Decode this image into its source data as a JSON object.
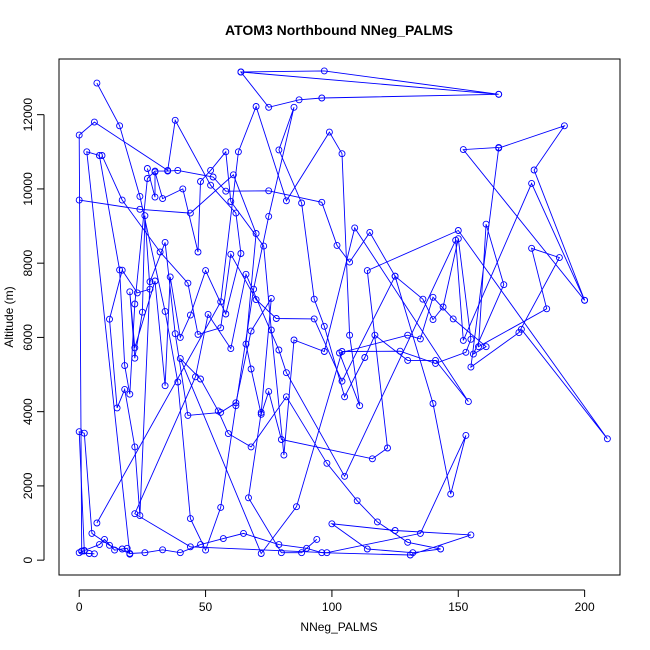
{
  "chart_data": {
    "type": "line",
    "title": "ATOM3 Northbound NNeg_PALMS",
    "xlabel": "NNeg_PALMS",
    "ylabel": "Altitude (m)",
    "xlim": [
      -8,
      214
    ],
    "ylim": [
      -400,
      13500
    ],
    "x_ticks": [
      0,
      50,
      100,
      150,
      200
    ],
    "y_ticks": [
      0,
      2000,
      4000,
      6000,
      8000,
      10000,
      12000
    ],
    "grid": false,
    "marker": "open-circle",
    "colors": {
      "series": "#0000ff",
      "axis": "#000000"
    },
    "series": [
      {
        "points": [
          [
            1,
            240
          ],
          [
            2,
            260
          ],
          [
            8,
            420
          ],
          [
            10,
            560
          ],
          [
            14,
            270
          ],
          [
            17,
            300
          ],
          [
            19,
            320
          ],
          [
            20,
            160
          ],
          [
            3,
            11000
          ],
          [
            8,
            10900
          ],
          [
            16,
            7820
          ],
          [
            18,
            5240
          ],
          [
            20,
            4470
          ],
          [
            22,
            6900
          ],
          [
            27,
            10280
          ],
          [
            30,
            10480
          ],
          [
            35,
            10480
          ],
          [
            39,
            10500
          ],
          [
            53,
            10320
          ],
          [
            58,
            9940
          ],
          [
            75,
            9950
          ],
          [
            96,
            9640
          ],
          [
            102,
            8480
          ],
          [
            107,
            8030
          ],
          [
            115,
            8830
          ],
          [
            125,
            7650
          ],
          [
            136,
            7030
          ],
          [
            140,
            6480
          ],
          [
            144,
            6820
          ],
          [
            150,
            8660
          ],
          [
            155,
            5950
          ],
          [
            153,
            5600
          ],
          [
            141,
            5300
          ],
          [
            127,
            5630
          ],
          [
            104,
            5620
          ],
          [
            86,
            1440
          ],
          [
            72,
            180
          ],
          [
            40,
            5430
          ],
          [
            48,
            4880
          ],
          [
            55,
            4020
          ],
          [
            59,
            3410
          ],
          [
            68,
            3050
          ],
          [
            82,
            4400
          ],
          [
            98,
            2610
          ],
          [
            110,
            1600
          ],
          [
            118,
            1030
          ],
          [
            130,
            480
          ],
          [
            143,
            300
          ],
          [
            132,
            200
          ],
          [
            114,
            300
          ],
          [
            100,
            980
          ],
          [
            125,
            800
          ],
          [
            155,
            680
          ],
          [
            131,
            140
          ],
          [
            96,
            200
          ],
          [
            90,
            320
          ],
          [
            79,
            420
          ],
          [
            65,
            720
          ],
          [
            57,
            580
          ],
          [
            48,
            420
          ],
          [
            40,
            200
          ],
          [
            33,
            280
          ],
          [
            26,
            200
          ],
          [
            20,
            180
          ],
          [
            12,
            400
          ],
          [
            5,
            720
          ],
          [
            2,
            3420
          ],
          [
            0,
            3460
          ],
          [
            2,
            250
          ],
          [
            0,
            200
          ],
          [
            4,
            180
          ],
          [
            6,
            170
          ]
        ]
      },
      {
        "points": [
          [
            1,
            240
          ],
          [
            0,
            11450
          ],
          [
            6,
            11800
          ],
          [
            35,
            10500
          ],
          [
            38,
            11850
          ],
          [
            52,
            10100
          ],
          [
            62,
            9350
          ],
          [
            64,
            8260
          ],
          [
            58,
            6630
          ],
          [
            50,
            7800
          ],
          [
            44,
            6600
          ],
          [
            40,
            6000
          ],
          [
            36,
            7630
          ],
          [
            34,
            4700
          ],
          [
            30,
            7520
          ],
          [
            22,
            5720
          ],
          [
            20,
            7230
          ],
          [
            22,
            5440
          ],
          [
            25,
            6680
          ],
          [
            26,
            9280
          ],
          [
            28,
            7300
          ],
          [
            23,
            7200
          ],
          [
            17,
            7810
          ],
          [
            12,
            6490
          ],
          [
            15,
            4100
          ],
          [
            18,
            4600
          ],
          [
            22,
            3050
          ],
          [
            24,
            1200
          ],
          [
            28,
            7500
          ],
          [
            34,
            8560
          ],
          [
            38,
            6100
          ],
          [
            43,
            3900
          ],
          [
            56,
            3980
          ],
          [
            62,
            4240
          ],
          [
            68,
            6170
          ],
          [
            76,
            7050
          ],
          [
            72,
            3980
          ],
          [
            67,
            1680
          ],
          [
            80,
            200
          ],
          [
            88,
            200
          ],
          [
            94,
            560
          ]
        ]
      },
      {
        "points": [
          [
            64,
            13150
          ],
          [
            97,
            13180
          ],
          [
            166,
            12550
          ],
          [
            64,
            13150
          ],
          [
            75,
            12200
          ],
          [
            87,
            12400
          ],
          [
            96,
            12450
          ],
          [
            166,
            12550
          ]
        ]
      },
      {
        "points": [
          [
            7,
            12850
          ],
          [
            16,
            11700
          ],
          [
            24,
            9800
          ],
          [
            34,
            6700
          ],
          [
            39,
            4800
          ],
          [
            44,
            1120
          ],
          [
            50,
            270
          ],
          [
            56,
            1420
          ],
          [
            62,
            4160
          ],
          [
            69,
            7300
          ],
          [
            75,
            9260
          ],
          [
            85,
            12200
          ],
          [
            79,
            11050
          ],
          [
            88,
            9620
          ],
          [
            93,
            7030
          ],
          [
            97,
            6300
          ],
          [
            105,
            4400
          ],
          [
            113,
            5460
          ],
          [
            117,
            6060
          ],
          [
            130,
            5380
          ],
          [
            141,
            5380
          ],
          [
            154,
            4270
          ],
          [
            109,
            8950
          ],
          [
            97,
            5620
          ],
          [
            85,
            5930
          ],
          [
            81,
            2830
          ],
          [
            76,
            6200
          ],
          [
            73,
            8460
          ],
          [
            60,
            9660
          ],
          [
            58,
            11000
          ],
          [
            52,
            10500
          ],
          [
            48,
            10200
          ],
          [
            47,
            8300
          ],
          [
            41,
            10000
          ],
          [
            33,
            9740
          ],
          [
            30,
            10460
          ],
          [
            30,
            9780
          ],
          [
            27,
            10550
          ]
        ]
      },
      {
        "points": [
          [
            7,
            1000
          ],
          [
            56,
            6960
          ],
          [
            63,
            11000
          ],
          [
            70,
            12220
          ],
          [
            82,
            9680
          ],
          [
            99,
            11530
          ],
          [
            104,
            10950
          ],
          [
            107,
            6060
          ],
          [
            111,
            4160
          ],
          [
            103,
            5580
          ],
          [
            130,
            6060
          ],
          [
            135,
            5960
          ],
          [
            140,
            7080
          ],
          [
            148,
            6500
          ],
          [
            161,
            5750
          ],
          [
            156,
            5550
          ],
          [
            168,
            7420
          ],
          [
            161,
            9050
          ],
          [
            158,
            5750
          ],
          [
            185,
            6770
          ],
          [
            179,
            8400
          ],
          [
            190,
            8150
          ],
          [
            174,
            6130
          ],
          [
            155,
            5200
          ],
          [
            166,
            11100
          ],
          [
            192,
            11700
          ],
          [
            180,
            10510
          ],
          [
            200,
            7000
          ],
          [
            152,
            11060
          ],
          [
            166,
            11120
          ]
        ]
      },
      {
        "points": [
          [
            0,
            9700
          ],
          [
            24,
            9450
          ],
          [
            44,
            9350
          ],
          [
            61,
            10380
          ],
          [
            70,
            8800
          ],
          [
            66,
            5820
          ],
          [
            68,
            5150
          ],
          [
            72,
            3930
          ],
          [
            75,
            4540
          ],
          [
            80,
            3250
          ],
          [
            116,
            2730
          ],
          [
            122,
            3020
          ],
          [
            114,
            7800
          ],
          [
            150,
            8880
          ],
          [
            209,
            3270
          ],
          [
            175,
            6220
          ]
        ]
      },
      {
        "points": [
          [
            9,
            10900
          ],
          [
            17,
            9700
          ],
          [
            32,
            8300
          ],
          [
            43,
            7460
          ],
          [
            47,
            6080
          ],
          [
            56,
            6260
          ],
          [
            60,
            8240
          ],
          [
            70,
            7020
          ],
          [
            78,
            6510
          ],
          [
            93,
            6500
          ],
          [
            104,
            4820
          ],
          [
            125,
            7650
          ],
          [
            140,
            4220
          ],
          [
            147,
            1780
          ],
          [
            153,
            3360
          ],
          [
            135,
            720
          ],
          [
            98,
            200
          ],
          [
            44,
            360
          ],
          [
            22,
            1250
          ],
          [
            46,
            4940
          ],
          [
            51,
            6620
          ],
          [
            60,
            5700
          ],
          [
            66,
            7700
          ],
          [
            79,
            5660
          ],
          [
            82,
            5050
          ],
          [
            105,
            2260
          ],
          [
            149,
            8620
          ],
          [
            152,
            5920
          ],
          [
            179,
            10150
          ],
          [
            200,
            7000
          ]
        ]
      }
    ]
  }
}
